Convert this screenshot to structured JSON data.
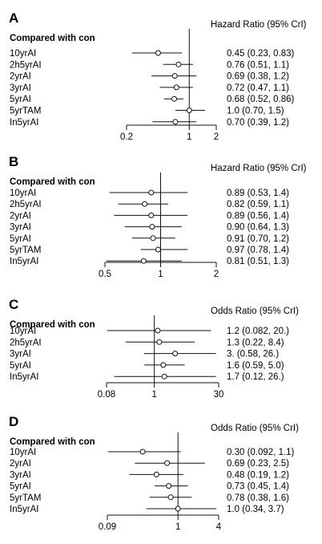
{
  "chart_data": [
    {
      "type": "forest",
      "panel_label": "A",
      "measure_label": "Hazard Ratio (95% CrI)",
      "compared_label": "Compared with con",
      "axis": {
        "scale": "log",
        "xlim": [
          0.2,
          2
        ],
        "ticks": [
          0.2,
          1,
          2
        ],
        "tick_labels": [
          "0.2",
          "1",
          "2"
        ],
        "reference": 1
      },
      "rows": [
        {
          "label": "10yrAI",
          "est": 0.45,
          "lo": 0.23,
          "hi": 0.83,
          "text": "0.45 (0.23, 0.83)"
        },
        {
          "label": "2h5yrAI",
          "est": 0.76,
          "lo": 0.51,
          "hi": 1.1,
          "text": "0.76 (0.51, 1.1)"
        },
        {
          "label": "2yrAI",
          "est": 0.69,
          "lo": 0.38,
          "hi": 1.2,
          "text": "0.69 (0.38, 1.2)"
        },
        {
          "label": "3yrAI",
          "est": 0.72,
          "lo": 0.47,
          "hi": 1.1,
          "text": "0.72 (0.47, 1.1)"
        },
        {
          "label": "5yrAI",
          "est": 0.68,
          "lo": 0.52,
          "hi": 0.86,
          "text": "0.68 (0.52, 0.86)"
        },
        {
          "label": "5yrTAM",
          "est": 1.0,
          "lo": 0.7,
          "hi": 1.5,
          "text": "1.0 (0.70, 1.5)"
        },
        {
          "label": "In5yrAI",
          "est": 0.7,
          "lo": 0.39,
          "hi": 1.2,
          "text": "0.70 (0.39, 1.2)"
        }
      ]
    },
    {
      "type": "forest",
      "panel_label": "B",
      "measure_label": "Hazard Ratio (95% CrI)",
      "compared_label": "Compared with con",
      "axis": {
        "scale": "log",
        "xlim": [
          0.5,
          2
        ],
        "ticks": [
          0.5,
          1,
          2
        ],
        "tick_labels": [
          "0.5",
          "1",
          "2"
        ],
        "reference": 1
      },
      "rows": [
        {
          "label": "10yrAI",
          "est": 0.89,
          "lo": 0.53,
          "hi": 1.4,
          "text": "0.89 (0.53, 1.4)"
        },
        {
          "label": "2h5yrAI",
          "est": 0.82,
          "lo": 0.59,
          "hi": 1.1,
          "text": "0.82 (0.59, 1.1)"
        },
        {
          "label": "2yrAI",
          "est": 0.89,
          "lo": 0.56,
          "hi": 1.4,
          "text": "0.89 (0.56, 1.4)"
        },
        {
          "label": "3yrAI",
          "est": 0.9,
          "lo": 0.64,
          "hi": 1.3,
          "text": "0.90 (0.64, 1.3)"
        },
        {
          "label": "5yrAI",
          "est": 0.91,
          "lo": 0.7,
          "hi": 1.2,
          "text": "0.91 (0.70, 1.2)"
        },
        {
          "label": "5yrTAM",
          "est": 0.97,
          "lo": 0.78,
          "hi": 1.4,
          "text": "0.97 (0.78, 1.4)"
        },
        {
          "label": "In5yrAI",
          "est": 0.81,
          "lo": 0.51,
          "hi": 1.3,
          "text": "0.81 (0.51, 1.3)"
        }
      ]
    },
    {
      "type": "forest",
      "panel_label": "C",
      "measure_label": "Odds Ratio (95% CrI)",
      "compared_label": "Compared with con",
      "axis": {
        "scale": "log",
        "xlim": [
          0.08,
          30
        ],
        "ticks": [
          0.08,
          1,
          30
        ],
        "tick_labels": [
          "0.08",
          "1",
          "30"
        ],
        "reference": 1
      },
      "rows": [
        {
          "label": "10yrAI",
          "est": 1.2,
          "lo": 0.082,
          "hi": 20,
          "text": "1.2 (0.082,  20.)"
        },
        {
          "label": "2h5yrAI",
          "est": 1.3,
          "lo": 0.22,
          "hi": 8.4,
          "text": "1.3 (0.22, 8.4)"
        },
        {
          "label": "3yrAI",
          "est": 3,
          "lo": 0.58,
          "hi": 26,
          "text": "3. (0.58, 26.)"
        },
        {
          "label": "5yrAI",
          "est": 1.6,
          "lo": 0.59,
          "hi": 5.0,
          "text": "1.6 (0.59, 5.0)"
        },
        {
          "label": "In5yrAI",
          "est": 1.7,
          "lo": 0.12,
          "hi": 26,
          "text": "1.7 (0.12,  26.)"
        }
      ]
    },
    {
      "type": "forest",
      "panel_label": "D",
      "measure_label": "Odds Ratio (95% CrI)",
      "compared_label": "Compared with con",
      "axis": {
        "scale": "log",
        "xlim": [
          0.09,
          4
        ],
        "ticks": [
          0.09,
          1,
          4
        ],
        "tick_labels": [
          "0.09",
          "1",
          "4"
        ],
        "reference": 1
      },
      "rows": [
        {
          "label": "10yrAI",
          "est": 0.3,
          "lo": 0.092,
          "hi": 1.1,
          "text": "0.30 (0.092, 1.1)"
        },
        {
          "label": "2yrAI",
          "est": 0.69,
          "lo": 0.23,
          "hi": 2.5,
          "text": "0.69 (0.23, 2.5)"
        },
        {
          "label": "3yrAI",
          "est": 0.48,
          "lo": 0.19,
          "hi": 1.2,
          "text": "0.48 (0.19, 1.2)"
        },
        {
          "label": "5yrAI",
          "est": 0.73,
          "lo": 0.45,
          "hi": 1.4,
          "text": "0.73 (0.45, 1.4)"
        },
        {
          "label": "5yrTAM",
          "est": 0.78,
          "lo": 0.38,
          "hi": 1.6,
          "text": "0.78 (0.38, 1.6)"
        },
        {
          "label": "In5yrAI",
          "est": 1.0,
          "lo": 0.34,
          "hi": 3.7,
          "text": "1.0 (0.34, 3.7)"
        }
      ]
    }
  ]
}
